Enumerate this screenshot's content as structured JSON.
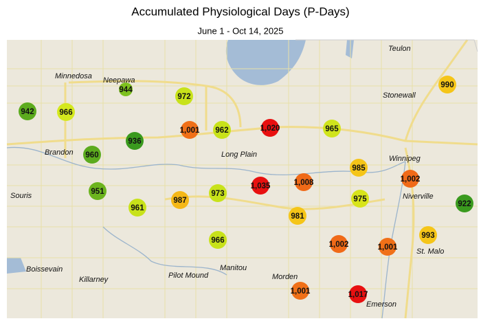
{
  "title": "Accumulated Physiological Days (P-Days)",
  "subtitle": "June 1 - Oct 14, 2025",
  "places": [
    "Teulon",
    "Minnedosa",
    "Neepawa",
    "Stonewall",
    "Winnipeg",
    "Brandon",
    "Long Plain",
    "Souris",
    "Niverville",
    "St. Malo",
    "Boissevain",
    "Killarney",
    "Pilot Mound",
    "Manitou",
    "Morden",
    "Emerson"
  ],
  "stations": [
    {
      "value": 942,
      "color": "#5cab1e"
    },
    {
      "value": 944,
      "color": "#7dc11f"
    },
    {
      "value": 966,
      "color": "#d4e81e"
    },
    {
      "value": 972,
      "color": "#c8e21a"
    },
    {
      "value": 1001,
      "label": "1,001",
      "color": "#f07018"
    },
    {
      "value": 962,
      "color": "#c8e21a"
    },
    {
      "value": 1020,
      "label": "1,020",
      "color": "#e81010"
    },
    {
      "value": 965,
      "color": "#d0e41c"
    },
    {
      "value": 990,
      "color": "#f5c518"
    },
    {
      "value": 936,
      "color": "#3a9a1e"
    },
    {
      "value": 960,
      "color": "#5cab1e"
    },
    {
      "value": 985,
      "color": "#f5c518"
    },
    {
      "value": 1002,
      "label": "1,002",
      "color": "#f06a18"
    },
    {
      "value": 1035,
      "label": "1,035",
      "color": "#e81010"
    },
    {
      "value": 1008,
      "label": "1,008",
      "color": "#f06a18"
    },
    {
      "value": 951,
      "color": "#6cb41e"
    },
    {
      "value": 961,
      "color": "#c8e21a"
    },
    {
      "value": 987,
      "color": "#f5b818"
    },
    {
      "value": 973,
      "color": "#c8e21a"
    },
    {
      "value": 975,
      "color": "#d8e41a"
    },
    {
      "value": 922,
      "color": "#3a9a1e"
    },
    {
      "value": 981,
      "color": "#f5c518"
    },
    {
      "value": 966,
      "color": "#c8e21a"
    },
    {
      "value": 1002,
      "label": "1,002",
      "color": "#f06a18"
    },
    {
      "value": 1001,
      "label": "1,001",
      "color": "#f07018"
    },
    {
      "value": 993,
      "color": "#f5c518"
    },
    {
      "value": 1001,
      "label": "1,001",
      "color": "#f07018"
    },
    {
      "value": 1017,
      "label": "1,017",
      "color": "#e81010"
    }
  ]
}
